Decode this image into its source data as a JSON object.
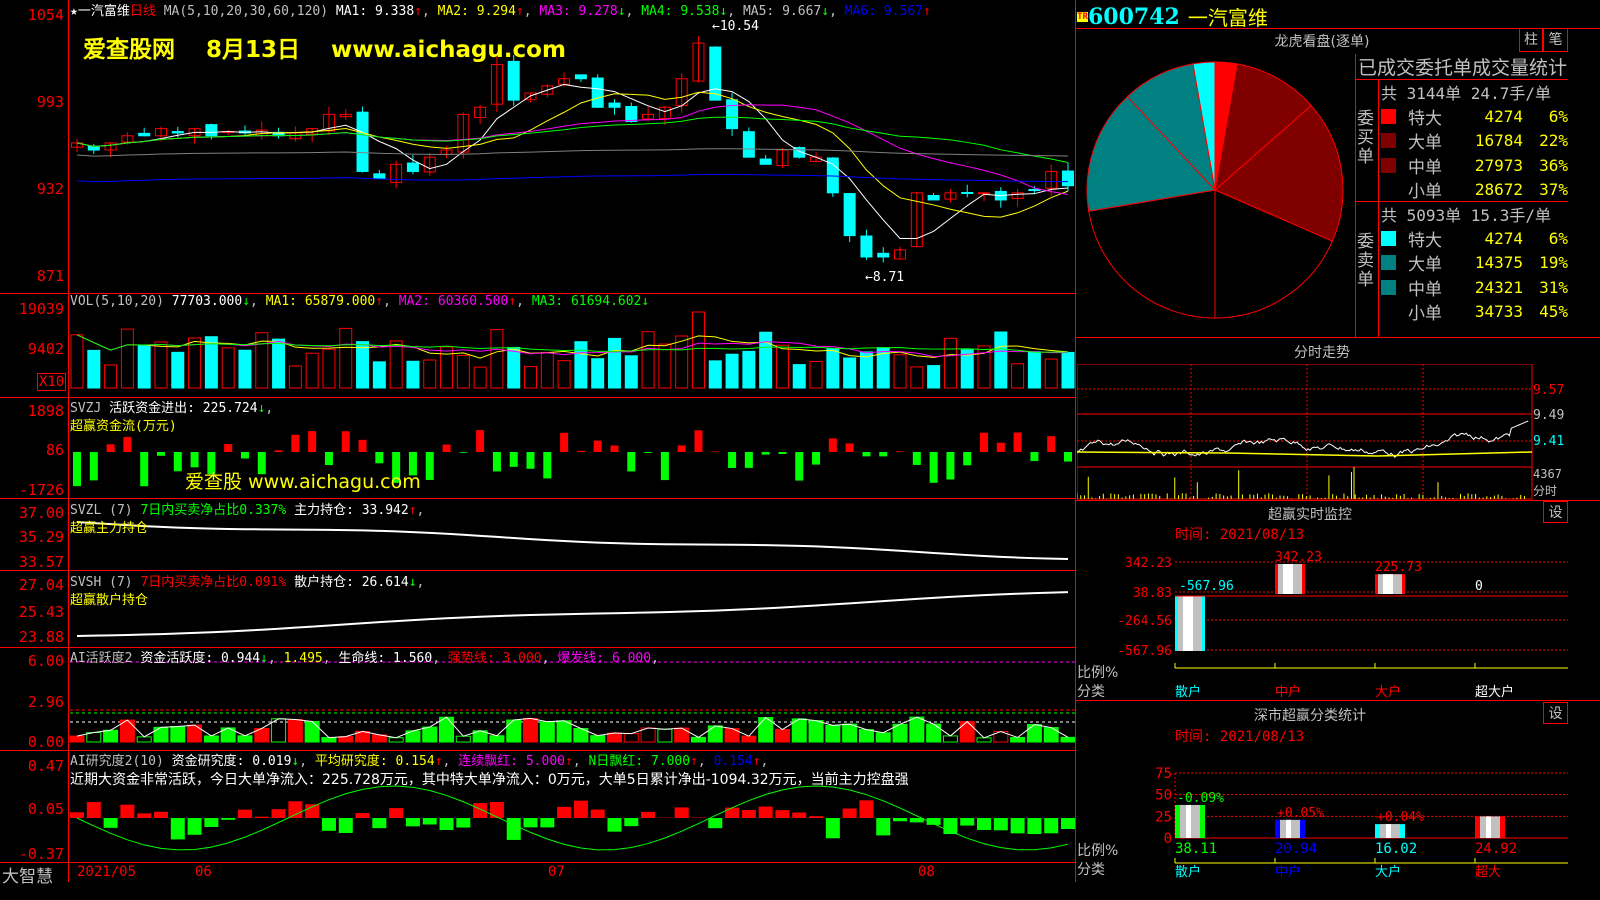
{
  "main": {
    "stock_name": "一汽富维",
    "period": "日线",
    "ma_label": "MA(5,10,20,30,60,120)",
    "ma1": "MA1: 9.338",
    "ma2": "MA2: 9.294",
    "ma3": "MA3: 9.278",
    "ma4": "MA4: 9.538",
    "ma5": "MA5: 9.667",
    "ma6": "MA6: 9.567",
    "watermark": "爱查股网　 8月13日　 www.aichagu.com",
    "high_label": "10.54",
    "low_label": "8.71",
    "y_ticks": [
      "1054",
      "993",
      "932",
      "871"
    ],
    "closes": [
      9.65,
      9.6,
      9.65,
      9.7,
      9.7,
      9.75,
      9.72,
      9.75,
      9.7,
      9.73,
      9.72,
      9.74,
      9.7,
      9.72,
      9.75,
      9.85,
      9.85,
      9.45,
      9.4,
      9.5,
      9.45,
      9.55,
      9.6,
      9.85,
      9.9,
      10.2,
      9.95,
      10.0,
      10.05,
      10.1,
      10.1,
      9.9,
      9.9,
      9.8,
      9.85,
      9.9,
      10.1,
      10.35,
      9.95,
      9.75,
      9.55,
      9.5,
      9.6,
      9.55,
      9.55,
      9.3,
      9.0,
      8.85,
      8.85,
      8.9,
      9.3,
      9.25,
      9.3,
      9.3,
      9.3,
      9.25,
      9.3,
      9.32,
      9.45,
      9.35
    ]
  },
  "vol": {
    "label": "VOL(5,10,20)",
    "v": "77703.000",
    "ma1": "MA1: 65879.000",
    "ma2": "MA2: 60360.500",
    "ma3": "MA3: 61694.602",
    "y_ticks": [
      "19039",
      "9402"
    ],
    "unit": "X10"
  },
  "svzj": {
    "label": "SVZJ",
    "desc": "活跃资金进出: 225.724",
    "sub": "超赢资金流(万元)",
    "watermark": "爱查股 www.aichagu.com",
    "y_ticks": [
      "1898",
      "86",
      "-1726"
    ]
  },
  "svzl": {
    "label": "SVZL (7)",
    "ratio": "7日内买卖净占比0.337%",
    "hold": "主力持仓: 33.942",
    "sub": "超赢主力持仓",
    "y_ticks": [
      "37.00",
      "35.29",
      "33.57"
    ]
  },
  "svsh": {
    "label": "SVSH (7)",
    "ratio": "7日内买卖净占比0.091%",
    "hold": "散户持仓: 26.614",
    "sub": "超赢散户持仓",
    "y_ticks": [
      "27.04",
      "25.43",
      "23.88"
    ]
  },
  "ai1": {
    "label": "AI活跃度2",
    "a": "资金活跃度: 0.944",
    "b": "1.495",
    "c": "生命线: 1.560",
    "d": "强势线: 3.000",
    "e": "爆发线: 6.000",
    "y_ticks": [
      "6.00",
      "2.96",
      "0.00"
    ]
  },
  "ai2": {
    "label": "AI研究度2(10)",
    "a": "资金研究度: 0.019",
    "b": "平均研究度: 0.154",
    "c": "连续飘红: 5.000",
    "d": "N日飘红: 7.000",
    "e": "0.154",
    "comment": "近期大资金非常活跃，今日大单净流入：225.728万元，其中特大单净流入：0万元，大单5日累计净出-1094.32万元，当前主力控盘强",
    "y_ticks": [
      "0.47",
      "0.05",
      "-0.37"
    ]
  },
  "date_axis": {
    "corner": "大智慧",
    "labels": [
      "2021/05",
      "06",
      "07",
      "08"
    ]
  },
  "right": {
    "code": "600742",
    "name": "一汽富维",
    "badge": "TR",
    "dragon": {
      "title": "龙虎看盘(逐单)",
      "btn1": "柱",
      "btn2": "笔",
      "stats_title": "已成交委托单成交量统计",
      "buy": {
        "side": "委买单",
        "summary": "共 3144单 24.7手/单",
        "rows": [
          {
            "label": "特大",
            "value": "4274",
            "pct": "6%",
            "color": "#ff0000"
          },
          {
            "label": "大单",
            "value": "16784",
            "pct": "22%",
            "color": "#800000"
          },
          {
            "label": "中单",
            "value": "27973",
            "pct": "36%",
            "color": "#800000"
          },
          {
            "label": "小单",
            "value": "28672",
            "pct": "37%",
            "color": "#000000"
          }
        ]
      },
      "sell": {
        "side": "委卖单",
        "summary": "共 5093单 15.3手/单",
        "rows": [
          {
            "label": "特大",
            "value": "4274",
            "pct": "6%",
            "color": "#00ffff"
          },
          {
            "label": "大单",
            "value": "14375",
            "pct": "19%",
            "color": "#008080"
          },
          {
            "label": "中单",
            "value": "24321",
            "pct": "31%",
            "color": "#008080"
          },
          {
            "label": "小单",
            "value": "34733",
            "pct": "45%",
            "color": "#000000"
          }
        ]
      }
    },
    "intraday": {
      "title": "分时走势",
      "y_ticks": [
        "9.57",
        "9.49",
        "9.41"
      ],
      "vol_label": "4367",
      "vol_unit": "分时"
    },
    "monitor": {
      "title": "超赢实时监控",
      "time": "时间: 2021/08/13",
      "y_ticks": [
        "342.23",
        "38.83",
        "-264.56",
        "-567.96"
      ],
      "zero": "0",
      "ratio_label": "比例%",
      "cat_label": "分类",
      "bars": [
        {
          "cat": "散户",
          "value": "-567.96",
          "v": -567.96,
          "color": "#00ffff"
        },
        {
          "cat": "中户",
          "value": "342.23",
          "v": 342.23,
          "color": "#ff0000"
        },
        {
          "cat": "大户",
          "value": "225.73",
          "v": 225.73,
          "color": "#ff0000"
        },
        {
          "cat": "超大户",
          "value": "0",
          "v": 0,
          "color": "#ffffff"
        }
      ]
    },
    "sz": {
      "title": "深市超赢分类统计",
      "time": "时间: 2021/08/13",
      "y_ticks": [
        "75",
        "50",
        "25",
        "0"
      ],
      "ratio_label": "比例%",
      "cat_label": "分类",
      "bars": [
        {
          "cat": "散户",
          "value": "38.11",
          "v": 38.11,
          "chg": "-0.09%",
          "color": "#00ff00"
        },
        {
          "cat": "中户",
          "value": "20.94",
          "v": 20.94,
          "chg": "+0.05%",
          "color": "#0000ff"
        },
        {
          "cat": "大户",
          "value": "16.02",
          "v": 16.02,
          "chg": "+0.04%",
          "color": "#00ffff"
        },
        {
          "cat": "超大",
          "value": "24.92",
          "v": 24.92,
          "chg": "",
          "color": "#ff0000"
        }
      ]
    }
  }
}
